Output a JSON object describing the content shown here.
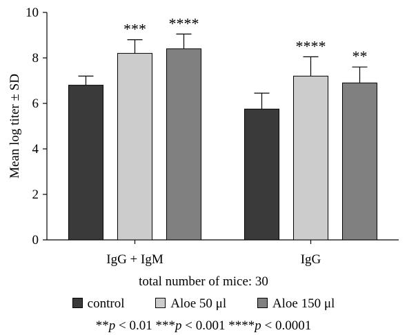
{
  "chart_data": {
    "type": "bar",
    "categories": [
      "IgG + IgM",
      "IgG"
    ],
    "ylabel": "Mean log titer ± SD",
    "xlabel": "",
    "ylim": [
      0,
      10
    ],
    "yticks": [
      0,
      2,
      4,
      6,
      8,
      10
    ],
    "series": [
      {
        "name": "control",
        "color": "#3a3a3a",
        "values": [
          6.8,
          5.75
        ],
        "errors": [
          0.4,
          0.7
        ],
        "significance": [
          "",
          ""
        ]
      },
      {
        "name": "Aloe 50 μl",
        "color": "#cccccc",
        "values": [
          8.2,
          7.2
        ],
        "errors": [
          0.6,
          0.85
        ],
        "significance": [
          "***",
          "****"
        ]
      },
      {
        "name": "Aloe 150 μl",
        "color": "#808080",
        "values": [
          8.4,
          6.9
        ],
        "errors": [
          0.65,
          0.7
        ],
        "significance": [
          "****",
          "**"
        ]
      }
    ],
    "legend_placement": "bottom"
  },
  "caption": {
    "subtitle": "total number of mice: 30",
    "footnote_parts": [
      {
        "text": "**",
        "italic": false
      },
      {
        "text": "p",
        "italic": true
      },
      {
        "text": " < 0.01 ***",
        "italic": false
      },
      {
        "text": "p",
        "italic": true
      },
      {
        "text": " < 0.001 ****",
        "italic": false
      },
      {
        "text": "p",
        "italic": true
      },
      {
        "text": " < 0.0001",
        "italic": false
      }
    ]
  }
}
